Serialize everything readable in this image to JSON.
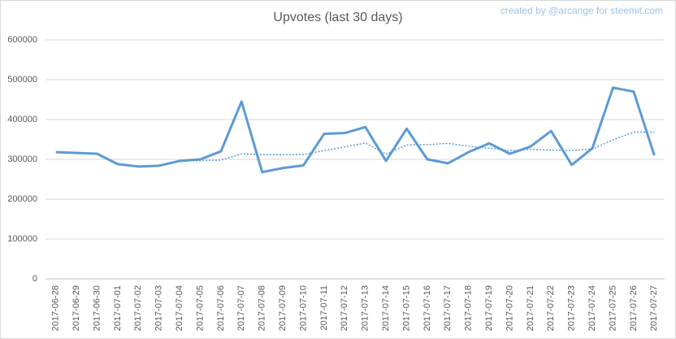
{
  "chart_data": {
    "type": "line",
    "title": "Upvotes (last 30 days)",
    "credit": "created by @arcange for steemit.com",
    "categories": [
      "2017-06-28",
      "2017-06-29",
      "2017-06-30",
      "2017-07-01",
      "2017-07-02",
      "2017-07-03",
      "2017-07-04",
      "2017-07-05",
      "2017-07-06",
      "2017-07-07",
      "2017-07-08",
      "2017-07-09",
      "2017-07-10",
      "2017-07-11",
      "2017-07-12",
      "2017-07-13",
      "2017-07-14",
      "2017-07-15",
      "2017-07-16",
      "2017-07-17",
      "2017-07-18",
      "2017-07-19",
      "2017-07-20",
      "2017-07-21",
      "2017-07-22",
      "2017-07-23",
      "2017-07-24",
      "2017-07-25",
      "2017-07-26",
      "2017-07-27"
    ],
    "series": [
      {
        "color": "#5b9bd5",
        "dash": false,
        "values": [
          318000,
          316000,
          314000,
          288000,
          282000,
          284000,
          296000,
          300000,
          320000,
          445000,
          268000,
          278000,
          285000,
          364000,
          366000,
          381000,
          296000,
          377000,
          300000,
          290000,
          318000,
          340000,
          314000,
          332000,
          371000,
          286000,
          328000,
          480000,
          470000,
          310000
        ]
      },
      {
        "color": "#5b9bd5",
        "dash": true,
        "values": [
          null,
          null,
          null,
          null,
          null,
          null,
          296000,
          297000,
          298000,
          314000,
          312000,
          312000,
          312000,
          322000,
          331000,
          341000,
          313000,
          336000,
          337000,
          340000,
          333000,
          328000,
          322000,
          325000,
          323000,
          322000,
          326000,
          349000,
          368000,
          368000
        ]
      }
    ],
    "ylim": [
      0,
      600000
    ],
    "yticks": [
      0,
      100000,
      200000,
      300000,
      400000,
      500000,
      600000
    ],
    "grid": true
  }
}
